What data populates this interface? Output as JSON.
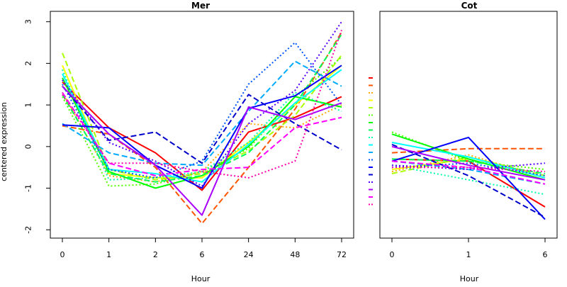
{
  "chart_data": {
    "type": "line",
    "ylabel": "centered expression",
    "panels": [
      {
        "title": "Mer",
        "xlabel": "Hour",
        "x": [
          "0",
          "1",
          "2",
          "6",
          "24",
          "48",
          "72"
        ],
        "ylim": [
          -2.0,
          3.0
        ],
        "yticks": [
          -2,
          -1,
          0,
          1,
          2,
          3
        ],
        "series": [
          {
            "color": "#FF0000",
            "dash": "solid",
            "values": [
              1.55,
              0.45,
              -0.15,
              -1.05,
              0.35,
              0.7,
              1.2
            ]
          },
          {
            "color": "#FF5500",
            "dash": "dashed",
            "values": [
              0.5,
              0.3,
              -0.5,
              -1.85,
              -0.5,
              0.9,
              2.75
            ]
          },
          {
            "color": "#FFAA00",
            "dash": "dotted",
            "values": [
              1.3,
              -0.7,
              -0.85,
              -0.6,
              0.55,
              0.45,
              1.0
            ]
          },
          {
            "color": "#FFFF00",
            "dash": "solid",
            "values": [
              1.95,
              -0.65,
              -0.75,
              -0.75,
              0.1,
              1.0,
              1.95
            ]
          },
          {
            "color": "#AAFF00",
            "dash": "dashed",
            "values": [
              2.25,
              -0.55,
              -0.8,
              -0.65,
              -0.1,
              0.75,
              2.2
            ]
          },
          {
            "color": "#55FF00",
            "dash": "dotted",
            "values": [
              1.2,
              -0.95,
              -0.9,
              -0.6,
              -0.05,
              1.2,
              2.15
            ]
          },
          {
            "color": "#00FF00",
            "dash": "solid",
            "values": [
              1.65,
              -0.6,
              -1.0,
              -0.7,
              0.0,
              1.2,
              0.95
            ]
          },
          {
            "color": "#00FF55",
            "dash": "dashed",
            "values": [
              1.25,
              -0.65,
              -0.85,
              -0.7,
              -0.15,
              1.0,
              2.7
            ]
          },
          {
            "color": "#00FFAA",
            "dash": "dotted",
            "values": [
              1.85,
              -0.8,
              -0.75,
              -0.6,
              0.1,
              1.3,
              0.85
            ]
          },
          {
            "color": "#00FFFF",
            "dash": "solid",
            "values": [
              1.75,
              -0.55,
              -0.65,
              -0.85,
              0.05,
              1.05,
              1.85
            ]
          },
          {
            "color": "#00AAFF",
            "dash": "dashed",
            "values": [
              0.55,
              -0.15,
              -0.4,
              -0.45,
              0.85,
              2.05,
              1.45
            ]
          },
          {
            "color": "#0055FF",
            "dash": "dotted",
            "values": [
              1.5,
              -0.55,
              -0.75,
              -0.35,
              1.5,
              2.5,
              1.0
            ]
          },
          {
            "color": "#0000FF",
            "dash": "solid",
            "values": [
              0.52,
              0.45,
              -0.45,
              -1.0,
              0.92,
              1.22,
              1.95
            ]
          },
          {
            "color": "#0000CC",
            "dash": "dashed",
            "values": [
              1.45,
              0.15,
              0.35,
              -0.4,
              1.25,
              0.55,
              -0.08
            ]
          },
          {
            "color": "#5500FF",
            "dash": "dotted",
            "values": [
              1.6,
              0.1,
              -0.35,
              -0.95,
              0.55,
              1.35,
              3.0
            ]
          },
          {
            "color": "#AA00FF",
            "dash": "solid",
            "values": [
              1.45,
              0.3,
              -0.45,
              -1.65,
              0.95,
              0.65,
              1.05
            ]
          },
          {
            "color": "#FF00FF",
            "dash": "dashed",
            "values": [
              1.3,
              -0.4,
              -0.7,
              -0.55,
              -0.5,
              0.45,
              0.7
            ]
          },
          {
            "color": "#FF00AA",
            "dash": "dotted",
            "values": [
              1.25,
              -0.4,
              -0.4,
              -0.6,
              -0.75,
              -0.35,
              2.8
            ]
          }
        ]
      },
      {
        "title": "Cot",
        "xlabel": "Hour",
        "x": [
          "0",
          "1",
          "6"
        ],
        "ylim": [
          -2.0,
          3.0
        ],
        "series": [
          {
            "color": "#FF0000",
            "dash": "solid",
            "values": [
              -0.3,
              -0.35,
              -1.45
            ]
          },
          {
            "color": "#FF5500",
            "dash": "dashed",
            "values": [
              -0.15,
              -0.05,
              -0.05
            ]
          },
          {
            "color": "#FFAA00",
            "dash": "dotted",
            "values": [
              -0.6,
              -0.2,
              -0.75
            ]
          },
          {
            "color": "#FFFF00",
            "dash": "solid",
            "values": [
              -0.55,
              -0.3,
              -0.8
            ]
          },
          {
            "color": "#AAFF00",
            "dash": "dashed",
            "values": [
              -0.65,
              -0.25,
              -0.7
            ]
          },
          {
            "color": "#55FF00",
            "dash": "dotted",
            "values": [
              0.35,
              -0.35,
              -0.55
            ]
          },
          {
            "color": "#00FF00",
            "dash": "solid",
            "values": [
              0.3,
              -0.3,
              -0.8
            ]
          },
          {
            "color": "#00FF55",
            "dash": "dashed",
            "values": [
              -0.3,
              -0.35,
              -0.65
            ]
          },
          {
            "color": "#00FFAA",
            "dash": "dotted",
            "values": [
              -0.45,
              -0.8,
              -1.15
            ]
          },
          {
            "color": "#00FFFF",
            "dash": "solid",
            "values": [
              0.1,
              -0.25,
              -0.75
            ]
          },
          {
            "color": "#00AAFF",
            "dash": "dashed",
            "values": [
              -0.35,
              -0.55,
              -0.9
            ]
          },
          {
            "color": "#0055FF",
            "dash": "dotted",
            "values": [
              -0.5,
              -0.4,
              -0.7
            ]
          },
          {
            "color": "#0000FF",
            "dash": "solid",
            "values": [
              -0.35,
              0.22,
              -1.75
            ]
          },
          {
            "color": "#0000CC",
            "dash": "dashed",
            "values": [
              0.05,
              -0.7,
              -1.7
            ]
          },
          {
            "color": "#5500FF",
            "dash": "dotted",
            "values": [
              -0.45,
              -0.55,
              -0.4
            ]
          },
          {
            "color": "#AA00FF",
            "dash": "solid",
            "values": [
              0.0,
              -0.45,
              -0.8
            ]
          },
          {
            "color": "#FF00FF",
            "dash": "dashed",
            "values": [
              -0.35,
              -0.5,
              -0.9
            ]
          },
          {
            "color": "#FF00AA",
            "dash": "dotted",
            "values": [
              -0.5,
              -0.5,
              -0.6
            ]
          }
        ]
      }
    ]
  }
}
